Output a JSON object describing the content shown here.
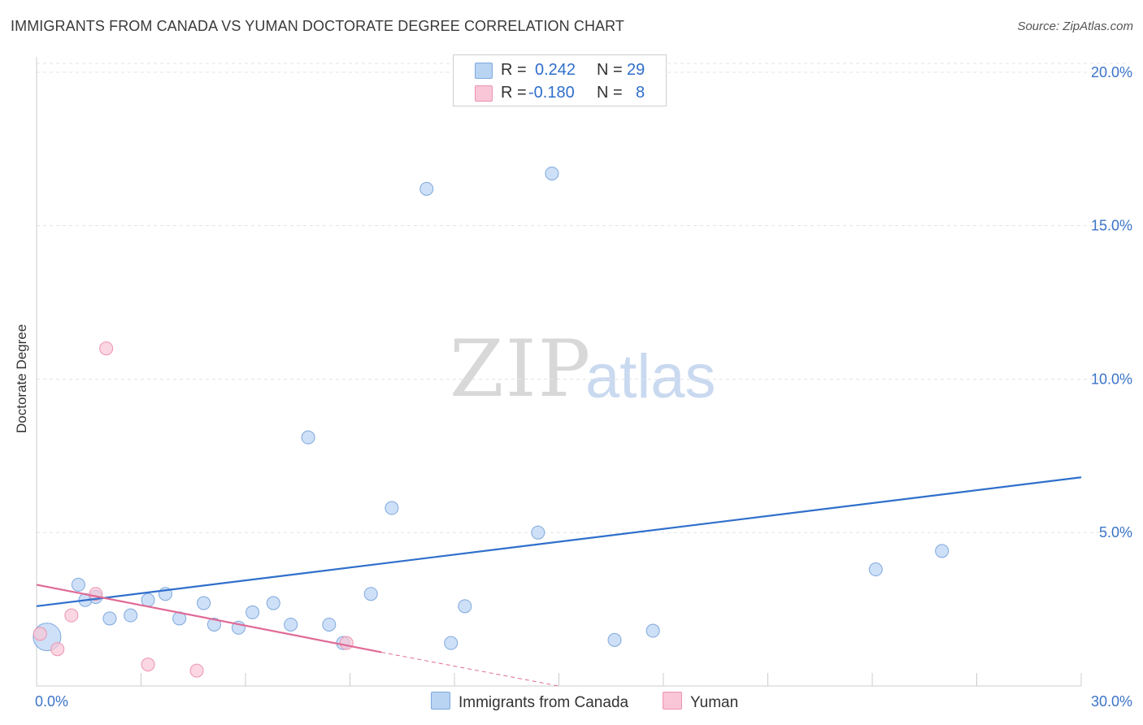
{
  "title": "IMMIGRANTS FROM CANADA VS YUMAN DOCTORATE DEGREE CORRELATION CHART",
  "source": "Source: ZipAtlas.com",
  "watermark": {
    "zip": "ZIP",
    "atlas": "atlas"
  },
  "colors": {
    "canada_fill": "#b9d3f3",
    "canada_stroke": "#7ea8de",
    "canada_line": "#2f6fcb",
    "yuman_fill": "#f8c6d6",
    "yuman_stroke": "#ee93b0",
    "yuman_line": "#e06a96",
    "grid": "#e3e3e3",
    "tick_text": "#3b74c8"
  },
  "legend": {
    "rows": [
      {
        "r_label": "R =",
        "r_value": "0.242",
        "n_label": "N =",
        "n_value": "29"
      },
      {
        "r_label": "R =",
        "r_value": "-0.180",
        "n_label": "N =",
        "n_value": "8"
      }
    ],
    "series_labels": [
      "Immigrants from Canada",
      "Yuman"
    ]
  },
  "chart_data": {
    "type": "scatter",
    "title": "IMMIGRANTS FROM CANADA VS YUMAN DOCTORATE DEGREE CORRELATION CHART",
    "xlabel": "",
    "ylabel": "Doctorate Degree",
    "xlim": [
      0,
      30
    ],
    "ylim": [
      0,
      20.5
    ],
    "x_ticks": [
      0,
      3,
      6,
      9,
      12,
      15,
      18,
      21,
      24,
      27,
      30
    ],
    "x_tick_labels": {
      "0": "0.0%",
      "30": "30.0%"
    },
    "y_ticks": [
      5,
      10,
      15,
      20
    ],
    "y_tick_labels": [
      "5.0%",
      "10.0%",
      "15.0%",
      "20.0%"
    ],
    "grid": true,
    "legend_position": "top-center",
    "series": [
      {
        "name": "Immigrants from Canada",
        "points": [
          {
            "x": 0.3,
            "y": 1.6,
            "size": "large"
          },
          {
            "x": 1.4,
            "y": 2.8
          },
          {
            "x": 1.2,
            "y": 3.3
          },
          {
            "x": 1.7,
            "y": 2.9
          },
          {
            "x": 2.1,
            "y": 2.2
          },
          {
            "x": 2.7,
            "y": 2.3
          },
          {
            "x": 3.2,
            "y": 2.8
          },
          {
            "x": 3.7,
            "y": 3.0
          },
          {
            "x": 4.1,
            "y": 2.2
          },
          {
            "x": 4.8,
            "y": 2.7
          },
          {
            "x": 5.1,
            "y": 2.0
          },
          {
            "x": 5.8,
            "y": 1.9
          },
          {
            "x": 6.2,
            "y": 2.4
          },
          {
            "x": 6.8,
            "y": 2.7
          },
          {
            "x": 7.3,
            "y": 2.0
          },
          {
            "x": 7.8,
            "y": 8.1
          },
          {
            "x": 8.4,
            "y": 2.0
          },
          {
            "x": 8.8,
            "y": 1.4
          },
          {
            "x": 9.6,
            "y": 3.0
          },
          {
            "x": 10.2,
            "y": 5.8
          },
          {
            "x": 11.2,
            "y": 16.2
          },
          {
            "x": 11.9,
            "y": 1.4
          },
          {
            "x": 12.3,
            "y": 2.6
          },
          {
            "x": 14.4,
            "y": 5.0
          },
          {
            "x": 14.8,
            "y": 16.7
          },
          {
            "x": 16.6,
            "y": 1.5
          },
          {
            "x": 17.7,
            "y": 1.8
          },
          {
            "x": 24.1,
            "y": 3.8
          },
          {
            "x": 26.0,
            "y": 4.4
          }
        ],
        "trend": {
          "x": [
            0,
            30
          ],
          "y": [
            2.6,
            6.8
          ]
        }
      },
      {
        "name": "Yuman",
        "points": [
          {
            "x": 0.1,
            "y": 1.7
          },
          {
            "x": 0.6,
            "y": 1.2
          },
          {
            "x": 1.0,
            "y": 2.3
          },
          {
            "x": 1.7,
            "y": 3.0
          },
          {
            "x": 2.0,
            "y": 11.0
          },
          {
            "x": 3.2,
            "y": 0.7
          },
          {
            "x": 4.6,
            "y": 0.5
          },
          {
            "x": 8.9,
            "y": 1.4
          }
        ],
        "trend": {
          "x": [
            0,
            9.9
          ],
          "y": [
            3.3,
            1.1
          ]
        },
        "trend_extension": {
          "x": [
            9.9,
            15
          ],
          "y": [
            1.1,
            0
          ]
        }
      }
    ]
  }
}
